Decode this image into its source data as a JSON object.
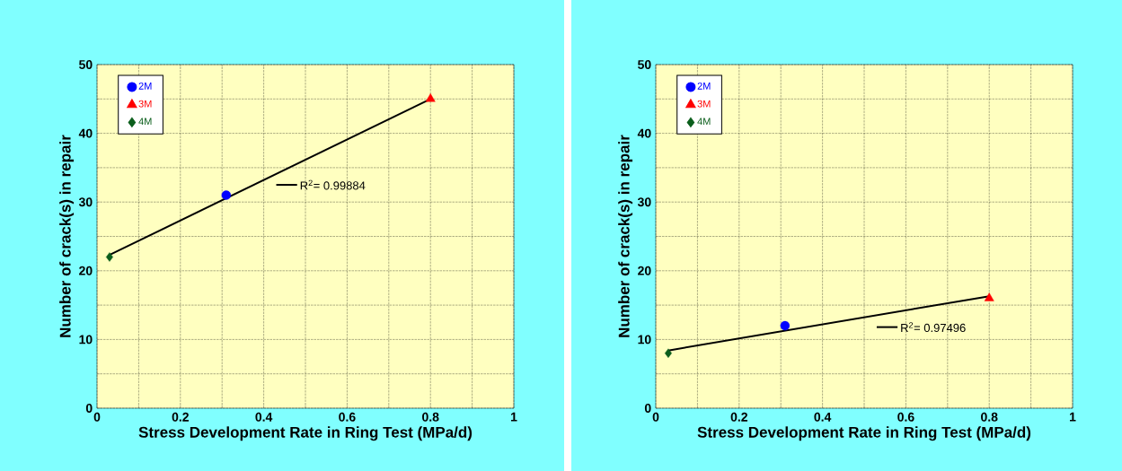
{
  "chart_data": [
    {
      "type": "scatter",
      "xlabel": "Stress Development Rate in Ring Test (MPa/d)",
      "ylabel": "Number of crack(s) in repair",
      "xlim": [
        0,
        1
      ],
      "ylim": [
        0,
        50
      ],
      "xticks": [
        0,
        {
          "value": 0.1,
          "label": null
        },
        0.2,
        {
          "value": 0.3,
          "label": null
        },
        0.4,
        {
          "value": 0.5,
          "label": null
        },
        0.6,
        {
          "value": 0.7,
          "label": null
        },
        0.8,
        {
          "value": 0.9,
          "label": null
        },
        1
      ],
      "yticks": [
        0,
        {
          "value": 5,
          "label": null
        },
        10,
        {
          "value": 15,
          "label": null
        },
        20,
        {
          "value": 25,
          "label": null
        },
        30,
        {
          "value": 35,
          "label": null
        },
        40,
        {
          "value": 45,
          "label": null
        },
        50
      ],
      "grid": true,
      "legend": "top left",
      "series": [
        {
          "name": "2M",
          "color": "#0000ff",
          "marker": "circle",
          "x": [
            0.31
          ],
          "values": [
            31
          ]
        },
        {
          "name": "3M",
          "color": "#ff0000",
          "marker": "triangle",
          "x": [
            0.8
          ],
          "values": [
            45
          ]
        },
        {
          "name": "4M",
          "color": "#0b5e1c",
          "marker": "diamond",
          "x": [
            0.03
          ],
          "values": [
            22
          ]
        },
        {
          "name": "R$^{2}$= 0.99884",
          "type": "line",
          "color": "#000000",
          "x": [
            0.03,
            0.8
          ],
          "values": [
            22.3,
            45
          ]
        }
      ]
    },
    {
      "type": "scatter",
      "xlabel": "Stress Development Rate in Ring Test (MPa/d)",
      "ylabel": "Number of crack(s) in repair",
      "xlim": [
        0,
        1
      ],
      "ylim": [
        0,
        50
      ],
      "xticks": [
        0,
        {
          "value": 0.1,
          "label": null
        },
        0.2,
        {
          "value": 0.3,
          "label": null
        },
        0.4,
        {
          "value": 0.5,
          "label": null
        },
        0.6,
        {
          "value": 0.7,
          "label": null
        },
        0.8,
        {
          "value": 0.9,
          "label": null
        },
        1
      ],
      "yticks": [
        0,
        {
          "value": 5,
          "label": null
        },
        10,
        {
          "value": 15,
          "label": null
        },
        20,
        {
          "value": 25,
          "label": null
        },
        30,
        {
          "value": 35,
          "label": null
        },
        40,
        {
          "value": 45,
          "label": null
        },
        50
      ],
      "grid": true,
      "legend": "top left",
      "series": [
        {
          "name": "2M",
          "color": "#0000ff",
          "marker": "circle",
          "x": [
            0.31
          ],
          "values": [
            12
          ]
        },
        {
          "name": "3M",
          "color": "#ff0000",
          "marker": "triangle",
          "x": [
            0.8
          ],
          "values": [
            16
          ]
        },
        {
          "name": "4M",
          "color": "#0b5e1c",
          "marker": "diamond",
          "x": [
            0.03
          ],
          "values": [
            8
          ]
        },
        {
          "name": "R$^{2}$= 0.97496",
          "type": "line",
          "color": "#000000",
          "x": [
            0.03,
            0.8
          ],
          "values": [
            8.4,
            16.3
          ]
        }
      ]
    }
  ]
}
